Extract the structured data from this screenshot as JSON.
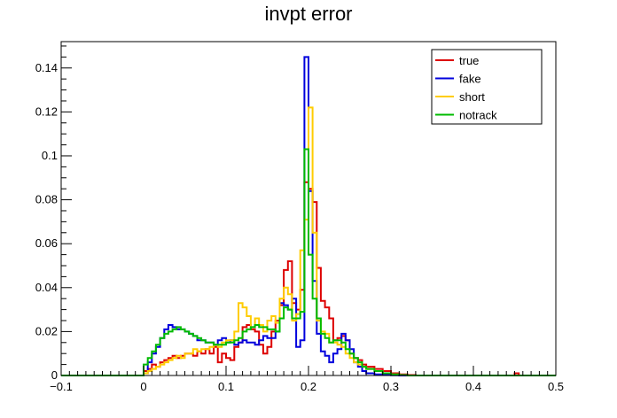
{
  "chart_data": {
    "type": "line",
    "drawstyle": "step",
    "title": "invpt error",
    "xlabel": "",
    "ylabel": "",
    "xlim": [
      -0.1,
      0.5
    ],
    "ylim": [
      0,
      0.152
    ],
    "grid": false,
    "legend_position": "top-right",
    "x_ticks": [
      {
        "value": -0.1,
        "label": "−0.1"
      },
      {
        "value": 0,
        "label": "0"
      },
      {
        "value": 0.1,
        "label": "0.1"
      },
      {
        "value": 0.2,
        "label": "0.2"
      },
      {
        "value": 0.3,
        "label": "0.3"
      },
      {
        "value": 0.4,
        "label": "0.4"
      },
      {
        "value": 0.5,
        "label": "0.5"
      }
    ],
    "y_ticks": [
      {
        "value": 0,
        "label": "0"
      },
      {
        "value": 0.02,
        "label": "0.02"
      },
      {
        "value": 0.04,
        "label": "0.04"
      },
      {
        "value": 0.06,
        "label": "0.06"
      },
      {
        "value": 0.08,
        "label": "0.08"
      },
      {
        "value": 0.1,
        "label": "0.1"
      },
      {
        "value": 0.12,
        "label": "0.12"
      },
      {
        "value": 0.14,
        "label": "0.14"
      }
    ],
    "series": [
      {
        "name": "true",
        "color": "#dd0000",
        "x": [
          -0.1,
          0,
          0.005,
          0.01,
          0.015,
          0.02,
          0.025,
          0.03,
          0.035,
          0.04,
          0.045,
          0.05,
          0.055,
          0.06,
          0.065,
          0.07,
          0.075,
          0.08,
          0.085,
          0.09,
          0.095,
          0.1,
          0.105,
          0.11,
          0.115,
          0.12,
          0.125,
          0.13,
          0.135,
          0.14,
          0.145,
          0.15,
          0.155,
          0.16,
          0.165,
          0.17,
          0.175,
          0.18,
          0.185,
          0.19,
          0.195,
          0.2,
          0.205,
          0.21,
          0.215,
          0.22,
          0.225,
          0.23,
          0.235,
          0.24,
          0.245,
          0.25,
          0.255,
          0.26,
          0.265,
          0.27,
          0.28,
          0.29,
          0.3,
          0.31,
          0.32,
          0.33,
          0.45,
          0.455,
          0.5
        ],
        "y": [
          0,
          0.002,
          0.003,
          0.005,
          0.004,
          0.006,
          0.007,
          0.008,
          0.009,
          0.008,
          0.009,
          0.01,
          0.01,
          0.009,
          0.011,
          0.01,
          0.012,
          0.01,
          0.013,
          0.006,
          0.01,
          0.008,
          0.007,
          0.013,
          0.015,
          0.022,
          0.023,
          0.021,
          0.02,
          0.014,
          0.01,
          0.013,
          0.02,
          0.025,
          0.032,
          0.048,
          0.052,
          0.033,
          0.03,
          0.039,
          0.088,
          0.085,
          0.079,
          0.049,
          0.034,
          0.031,
          0.026,
          0.016,
          0.017,
          0.018,
          0.016,
          0.01,
          0.008,
          0.007,
          0.005,
          0.004,
          0.003,
          0.002,
          0.001,
          0.0005,
          0.0002,
          0,
          0.001,
          0,
          0
        ]
      },
      {
        "name": "fake",
        "color": "#0000dd",
        "x": [
          -0.1,
          0,
          0.005,
          0.01,
          0.015,
          0.02,
          0.025,
          0.03,
          0.035,
          0.04,
          0.045,
          0.05,
          0.055,
          0.06,
          0.065,
          0.07,
          0.075,
          0.08,
          0.085,
          0.09,
          0.095,
          0.1,
          0.105,
          0.11,
          0.115,
          0.12,
          0.125,
          0.13,
          0.135,
          0.14,
          0.145,
          0.15,
          0.155,
          0.16,
          0.165,
          0.17,
          0.175,
          0.18,
          0.185,
          0.19,
          0.195,
          0.2,
          0.205,
          0.21,
          0.215,
          0.22,
          0.225,
          0.23,
          0.235,
          0.24,
          0.245,
          0.25,
          0.255,
          0.26,
          0.265,
          0.27,
          0.28,
          0.29,
          0.3,
          0.31,
          0.32,
          0.33,
          0.5
        ],
        "y": [
          0,
          0.001,
          0.006,
          0.01,
          0.013,
          0.017,
          0.021,
          0.023,
          0.022,
          0.021,
          0.021,
          0.02,
          0.019,
          0.018,
          0.016,
          0.016,
          0.015,
          0.015,
          0.014,
          0.016,
          0.017,
          0.015,
          0.016,
          0.014,
          0.015,
          0.016,
          0.015,
          0.015,
          0.014,
          0.016,
          0.018,
          0.017,
          0.017,
          0.02,
          0.033,
          0.032,
          0.03,
          0.035,
          0.013,
          0.016,
          0.145,
          0.084,
          0.043,
          0.019,
          0.011,
          0.009,
          0.006,
          0.01,
          0.012,
          0.019,
          0.016,
          0.012,
          0.006,
          0.004,
          0.002,
          0.001,
          0.0005,
          0.0002,
          0.0001,
          0,
          0,
          0,
          0
        ]
      },
      {
        "name": "short",
        "color": "#ffcc00",
        "x": [
          -0.1,
          0,
          0.005,
          0.01,
          0.015,
          0.02,
          0.025,
          0.03,
          0.035,
          0.04,
          0.045,
          0.05,
          0.055,
          0.06,
          0.065,
          0.07,
          0.075,
          0.08,
          0.085,
          0.09,
          0.095,
          0.1,
          0.105,
          0.11,
          0.115,
          0.12,
          0.125,
          0.13,
          0.135,
          0.14,
          0.145,
          0.15,
          0.155,
          0.16,
          0.165,
          0.17,
          0.175,
          0.18,
          0.185,
          0.19,
          0.195,
          0.2,
          0.205,
          0.21,
          0.215,
          0.22,
          0.225,
          0.23,
          0.235,
          0.24,
          0.245,
          0.25,
          0.255,
          0.26,
          0.265,
          0.27,
          0.28,
          0.29,
          0.3,
          0.31,
          0.32,
          0.33,
          0.5
        ],
        "y": [
          0,
          0.001,
          0.002,
          0.003,
          0.004,
          0.005,
          0.006,
          0.007,
          0.008,
          0.009,
          0.008,
          0.01,
          0.01,
          0.012,
          0.011,
          0.012,
          0.012,
          0.013,
          0.014,
          0.013,
          0.015,
          0.016,
          0.016,
          0.02,
          0.033,
          0.031,
          0.027,
          0.022,
          0.026,
          0.023,
          0.02,
          0.025,
          0.027,
          0.024,
          0.035,
          0.04,
          0.037,
          0.025,
          0.028,
          0.057,
          0.071,
          0.122,
          0.065,
          0.025,
          0.02,
          0.019,
          0.015,
          0.015,
          0.014,
          0.013,
          0.01,
          0.008,
          0.006,
          0.005,
          0.004,
          0.003,
          0.002,
          0.001,
          0.0005,
          0.0002,
          0,
          0,
          0
        ]
      },
      {
        "name": "notrack",
        "color": "#00bb00",
        "x": [
          -0.1,
          0,
          0.005,
          0.01,
          0.015,
          0.02,
          0.025,
          0.03,
          0.035,
          0.04,
          0.045,
          0.05,
          0.055,
          0.06,
          0.065,
          0.07,
          0.075,
          0.08,
          0.085,
          0.09,
          0.095,
          0.1,
          0.105,
          0.11,
          0.115,
          0.12,
          0.125,
          0.13,
          0.135,
          0.14,
          0.145,
          0.15,
          0.155,
          0.16,
          0.165,
          0.17,
          0.175,
          0.18,
          0.185,
          0.19,
          0.195,
          0.2,
          0.205,
          0.21,
          0.215,
          0.22,
          0.225,
          0.23,
          0.235,
          0.24,
          0.245,
          0.25,
          0.255,
          0.26,
          0.265,
          0.27,
          0.28,
          0.29,
          0.3,
          0.31,
          0.32,
          0.33,
          0.5
        ],
        "y": [
          0,
          0.005,
          0.008,
          0.011,
          0.014,
          0.017,
          0.019,
          0.02,
          0.021,
          0.022,
          0.021,
          0.02,
          0.019,
          0.018,
          0.017,
          0.016,
          0.015,
          0.015,
          0.014,
          0.014,
          0.014,
          0.015,
          0.015,
          0.016,
          0.017,
          0.02,
          0.021,
          0.022,
          0.023,
          0.022,
          0.022,
          0.021,
          0.021,
          0.02,
          0.026,
          0.031,
          0.03,
          0.026,
          0.026,
          0.029,
          0.103,
          0.055,
          0.035,
          0.026,
          0.019,
          0.017,
          0.015,
          0.016,
          0.016,
          0.015,
          0.012,
          0.01,
          0.008,
          0.006,
          0.004,
          0.003,
          0.002,
          0.001,
          0.0005,
          0.0002,
          0,
          0,
          0
        ]
      }
    ]
  }
}
